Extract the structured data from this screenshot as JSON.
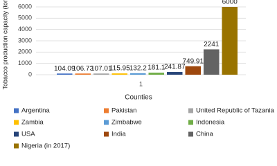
{
  "chart_data": {
    "type": "bar",
    "ylabel": "Tobacco production capacity (tons)",
    "xlabel": "Counties",
    "categories": [
      "1"
    ],
    "series": [
      {
        "name": "Argentina",
        "color": "#4472c4",
        "values": [
          104.09
        ]
      },
      {
        "name": "Pakistan",
        "color": "#ed7d31",
        "values": [
          106.73
        ]
      },
      {
        "name": "United Republic of Tazania",
        "color": "#a5a5a5",
        "values": [
          107.01
        ]
      },
      {
        "name": "Zambia",
        "color": "#ffc000",
        "values": [
          115.95
        ]
      },
      {
        "name": "Zimbabwe",
        "color": "#5b9bd5",
        "values": [
          132.2
        ]
      },
      {
        "name": "Indonesia",
        "color": "#70ad47",
        "values": [
          181.1
        ]
      },
      {
        "name": "USA",
        "color": "#264478",
        "values": [
          241.87
        ]
      },
      {
        "name": "India",
        "color": "#9e480e",
        "values": [
          749.91
        ]
      },
      {
        "name": "China",
        "color": "#636363",
        "values": [
          2241
        ]
      },
      {
        "name": "Nigeria (in 2017)",
        "color": "#997300",
        "values": [
          6000
        ]
      }
    ],
    "ylim": [
      0,
      6000
    ],
    "yticks": [
      0,
      1000,
      2000,
      3000,
      4000,
      5000,
      6000
    ],
    "grid": true,
    "legend": "bottom"
  }
}
